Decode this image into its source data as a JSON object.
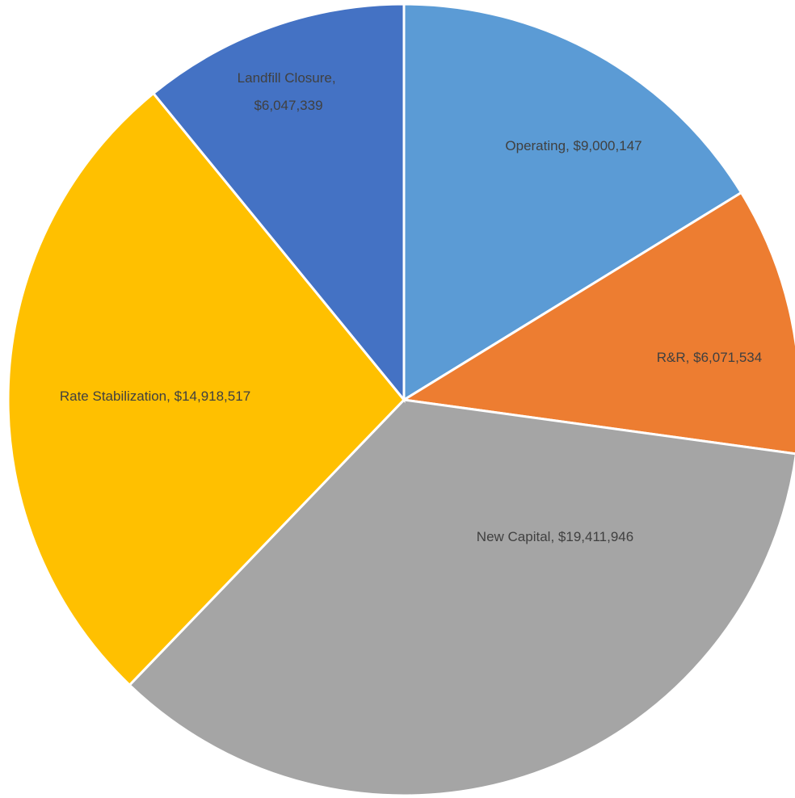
{
  "chart_data": {
    "type": "pie",
    "categories": [
      "Operating",
      "R&R",
      "New Capital",
      "Rate Stabilization",
      "Landfill Closure"
    ],
    "values": [
      9000147,
      6071534,
      19411946,
      14918517,
      6047339
    ],
    "value_labels": [
      "$9,000,147",
      "$6,071,534",
      "$19,411,946",
      "$14,918,517",
      "$6,047,339"
    ],
    "label_separator": ", ",
    "colors": [
      "#5b9bd5",
      "#ed7d31",
      "#a5a5a5",
      "#ffc000",
      "#4472c4"
    ]
  }
}
